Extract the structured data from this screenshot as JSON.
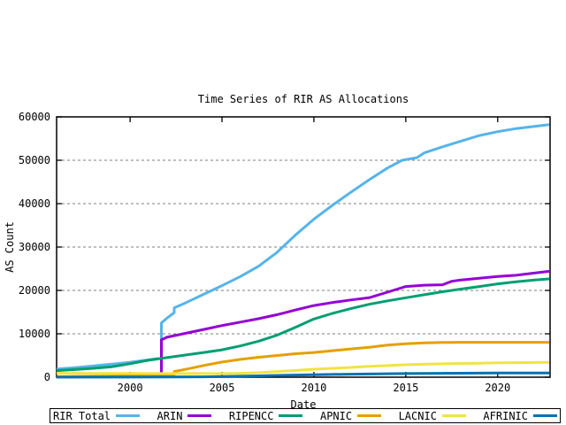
{
  "title": "Time Series of RIR AS Allocations",
  "axes": {
    "x_label": "Date",
    "y_label": "AS Count"
  },
  "chart_data": {
    "type": "line",
    "title": "Time Series of RIR AS Allocations",
    "xlabel": "Date",
    "ylabel": "AS Count",
    "xlim": [
      1996,
      2022.85
    ],
    "ylim": [
      0,
      60000
    ],
    "xticks": [
      2000,
      2005,
      2010,
      2015,
      2020
    ],
    "yticks": [
      0,
      10000,
      20000,
      30000,
      40000,
      50000,
      60000
    ],
    "grid": "horizontal-dashed",
    "grid_color": "#7f7f7f",
    "legend_position": "bottom-row-boxed",
    "background": "#ffffff",
    "series": [
      {
        "name": "RIR Total",
        "color": "#56b4e9",
        "points": [
          [
            1996,
            1900
          ],
          [
            1997,
            2200
          ],
          [
            1998,
            2600
          ],
          [
            1999,
            3000
          ],
          [
            2000,
            3450
          ],
          [
            2001,
            4000
          ],
          [
            2001.7,
            4400
          ],
          [
            2001.7,
            12500
          ],
          [
            2002,
            13600
          ],
          [
            2002.4,
            14900
          ],
          [
            2002.4,
            16000
          ],
          [
            2003,
            17100
          ],
          [
            2004,
            19100
          ],
          [
            2005,
            21100
          ],
          [
            2006,
            23200
          ],
          [
            2007,
            25600
          ],
          [
            2008,
            28800
          ],
          [
            2009,
            32800
          ],
          [
            2010,
            36400
          ],
          [
            2011,
            39600
          ],
          [
            2012,
            42600
          ],
          [
            2013,
            45500
          ],
          [
            2014,
            48200
          ],
          [
            2014.8,
            50000
          ],
          [
            2015.6,
            50600
          ],
          [
            2016,
            51700
          ],
          [
            2017,
            53100
          ],
          [
            2018,
            54400
          ],
          [
            2019,
            55700
          ],
          [
            2020,
            56600
          ],
          [
            2021,
            57300
          ],
          [
            2022,
            57800
          ],
          [
            2022.8,
            58200
          ]
        ]
      },
      {
        "name": "ARIN",
        "color": "#9400d3",
        "points": [
          [
            1996,
            30
          ],
          [
            1998,
            100
          ],
          [
            2000,
            300
          ],
          [
            2001,
            550
          ],
          [
            2001.7,
            900
          ],
          [
            2001.7,
            8600
          ],
          [
            2002,
            9200
          ],
          [
            2003,
            10100
          ],
          [
            2004,
            11000
          ],
          [
            2005,
            11900
          ],
          [
            2006,
            12700
          ],
          [
            2007,
            13500
          ],
          [
            2008,
            14400
          ],
          [
            2009,
            15500
          ],
          [
            2010,
            16500
          ],
          [
            2011,
            17200
          ],
          [
            2012,
            17800
          ],
          [
            2013,
            18300
          ],
          [
            2014,
            19600
          ],
          [
            2015,
            20900
          ],
          [
            2016,
            21200
          ],
          [
            2017,
            21300
          ],
          [
            2017.5,
            22100
          ],
          [
            2018,
            22400
          ],
          [
            2019,
            22800
          ],
          [
            2020,
            23200
          ],
          [
            2021,
            23500
          ],
          [
            2022,
            24000
          ],
          [
            2022.8,
            24400
          ]
        ]
      },
      {
        "name": "RIPENCC",
        "color": "#009e73",
        "points": [
          [
            1996,
            1500
          ],
          [
            1997,
            1750
          ],
          [
            1998,
            2050
          ],
          [
            1999,
            2400
          ],
          [
            2000,
            3100
          ],
          [
            2000.6,
            3600
          ],
          [
            2001,
            3900
          ],
          [
            2002,
            4500
          ],
          [
            2003,
            5100
          ],
          [
            2004,
            5700
          ],
          [
            2005,
            6300
          ],
          [
            2006,
            7200
          ],
          [
            2007,
            8300
          ],
          [
            2008,
            9700
          ],
          [
            2009,
            11500
          ],
          [
            2010,
            13400
          ],
          [
            2011,
            14700
          ],
          [
            2012,
            15800
          ],
          [
            2013,
            16800
          ],
          [
            2014,
            17600
          ],
          [
            2015,
            18300
          ],
          [
            2016,
            19000
          ],
          [
            2017,
            19700
          ],
          [
            2018,
            20300
          ],
          [
            2019,
            20900
          ],
          [
            2020,
            21500
          ],
          [
            2021,
            22000
          ],
          [
            2022,
            22400
          ],
          [
            2022.8,
            22650
          ]
        ]
      },
      {
        "name": "APNIC",
        "color": "#e69f00",
        "points": [
          [
            1996,
            100
          ],
          [
            1998,
            200
          ],
          [
            2000,
            350
          ],
          [
            2001,
            450
          ],
          [
            2002,
            550
          ],
          [
            2002.4,
            600
          ],
          [
            2002.4,
            1300
          ],
          [
            2003,
            1800
          ],
          [
            2004,
            2700
          ],
          [
            2005,
            3500
          ],
          [
            2006,
            4100
          ],
          [
            2007,
            4600
          ],
          [
            2008,
            5000
          ],
          [
            2009,
            5400
          ],
          [
            2010,
            5700
          ],
          [
            2011,
            6100
          ],
          [
            2012,
            6500
          ],
          [
            2013,
            6900
          ],
          [
            2014,
            7400
          ],
          [
            2015,
            7700
          ],
          [
            2016,
            7900
          ],
          [
            2017,
            8000
          ],
          [
            2018,
            8050
          ],
          [
            2019,
            8050
          ],
          [
            2020,
            8050
          ],
          [
            2021,
            8050
          ],
          [
            2022,
            8050
          ],
          [
            2022.8,
            8050
          ]
        ]
      },
      {
        "name": "LACNIC",
        "color": "#f0e442",
        "points": [
          [
            1996,
            900
          ],
          [
            1998,
            880
          ],
          [
            2000,
            860
          ],
          [
            2002,
            840
          ],
          [
            2004,
            830
          ],
          [
            2005,
            840
          ],
          [
            2006,
            900
          ],
          [
            2007,
            1050
          ],
          [
            2008,
            1300
          ],
          [
            2009,
            1550
          ],
          [
            2010,
            1840
          ],
          [
            2011,
            2050
          ],
          [
            2012,
            2250
          ],
          [
            2013,
            2480
          ],
          [
            2014,
            2680
          ],
          [
            2015,
            2870
          ],
          [
            2016,
            2980
          ],
          [
            2017,
            3080
          ],
          [
            2018,
            3160
          ],
          [
            2019,
            3230
          ],
          [
            2020,
            3300
          ],
          [
            2021,
            3350
          ],
          [
            2022,
            3380
          ],
          [
            2022.8,
            3400
          ]
        ]
      },
      {
        "name": "AFRINIC",
        "color": "#0072b2",
        "points": [
          [
            1996,
            20
          ],
          [
            2000,
            30
          ],
          [
            2002,
            40
          ],
          [
            2004,
            80
          ],
          [
            2005,
            150
          ],
          [
            2006,
            220
          ],
          [
            2007,
            300
          ],
          [
            2008,
            400
          ],
          [
            2009,
            480
          ],
          [
            2010,
            560
          ],
          [
            2011,
            630
          ],
          [
            2012,
            690
          ],
          [
            2013,
            740
          ],
          [
            2014,
            790
          ],
          [
            2015,
            830
          ],
          [
            2016,
            860
          ],
          [
            2017,
            890
          ],
          [
            2018,
            910
          ],
          [
            2019,
            930
          ],
          [
            2020,
            950
          ],
          [
            2021,
            960
          ],
          [
            2022,
            970
          ],
          [
            2022.8,
            980
          ]
        ]
      }
    ]
  },
  "layout_colors": {
    "border": "#000000",
    "text": "#000000"
  }
}
